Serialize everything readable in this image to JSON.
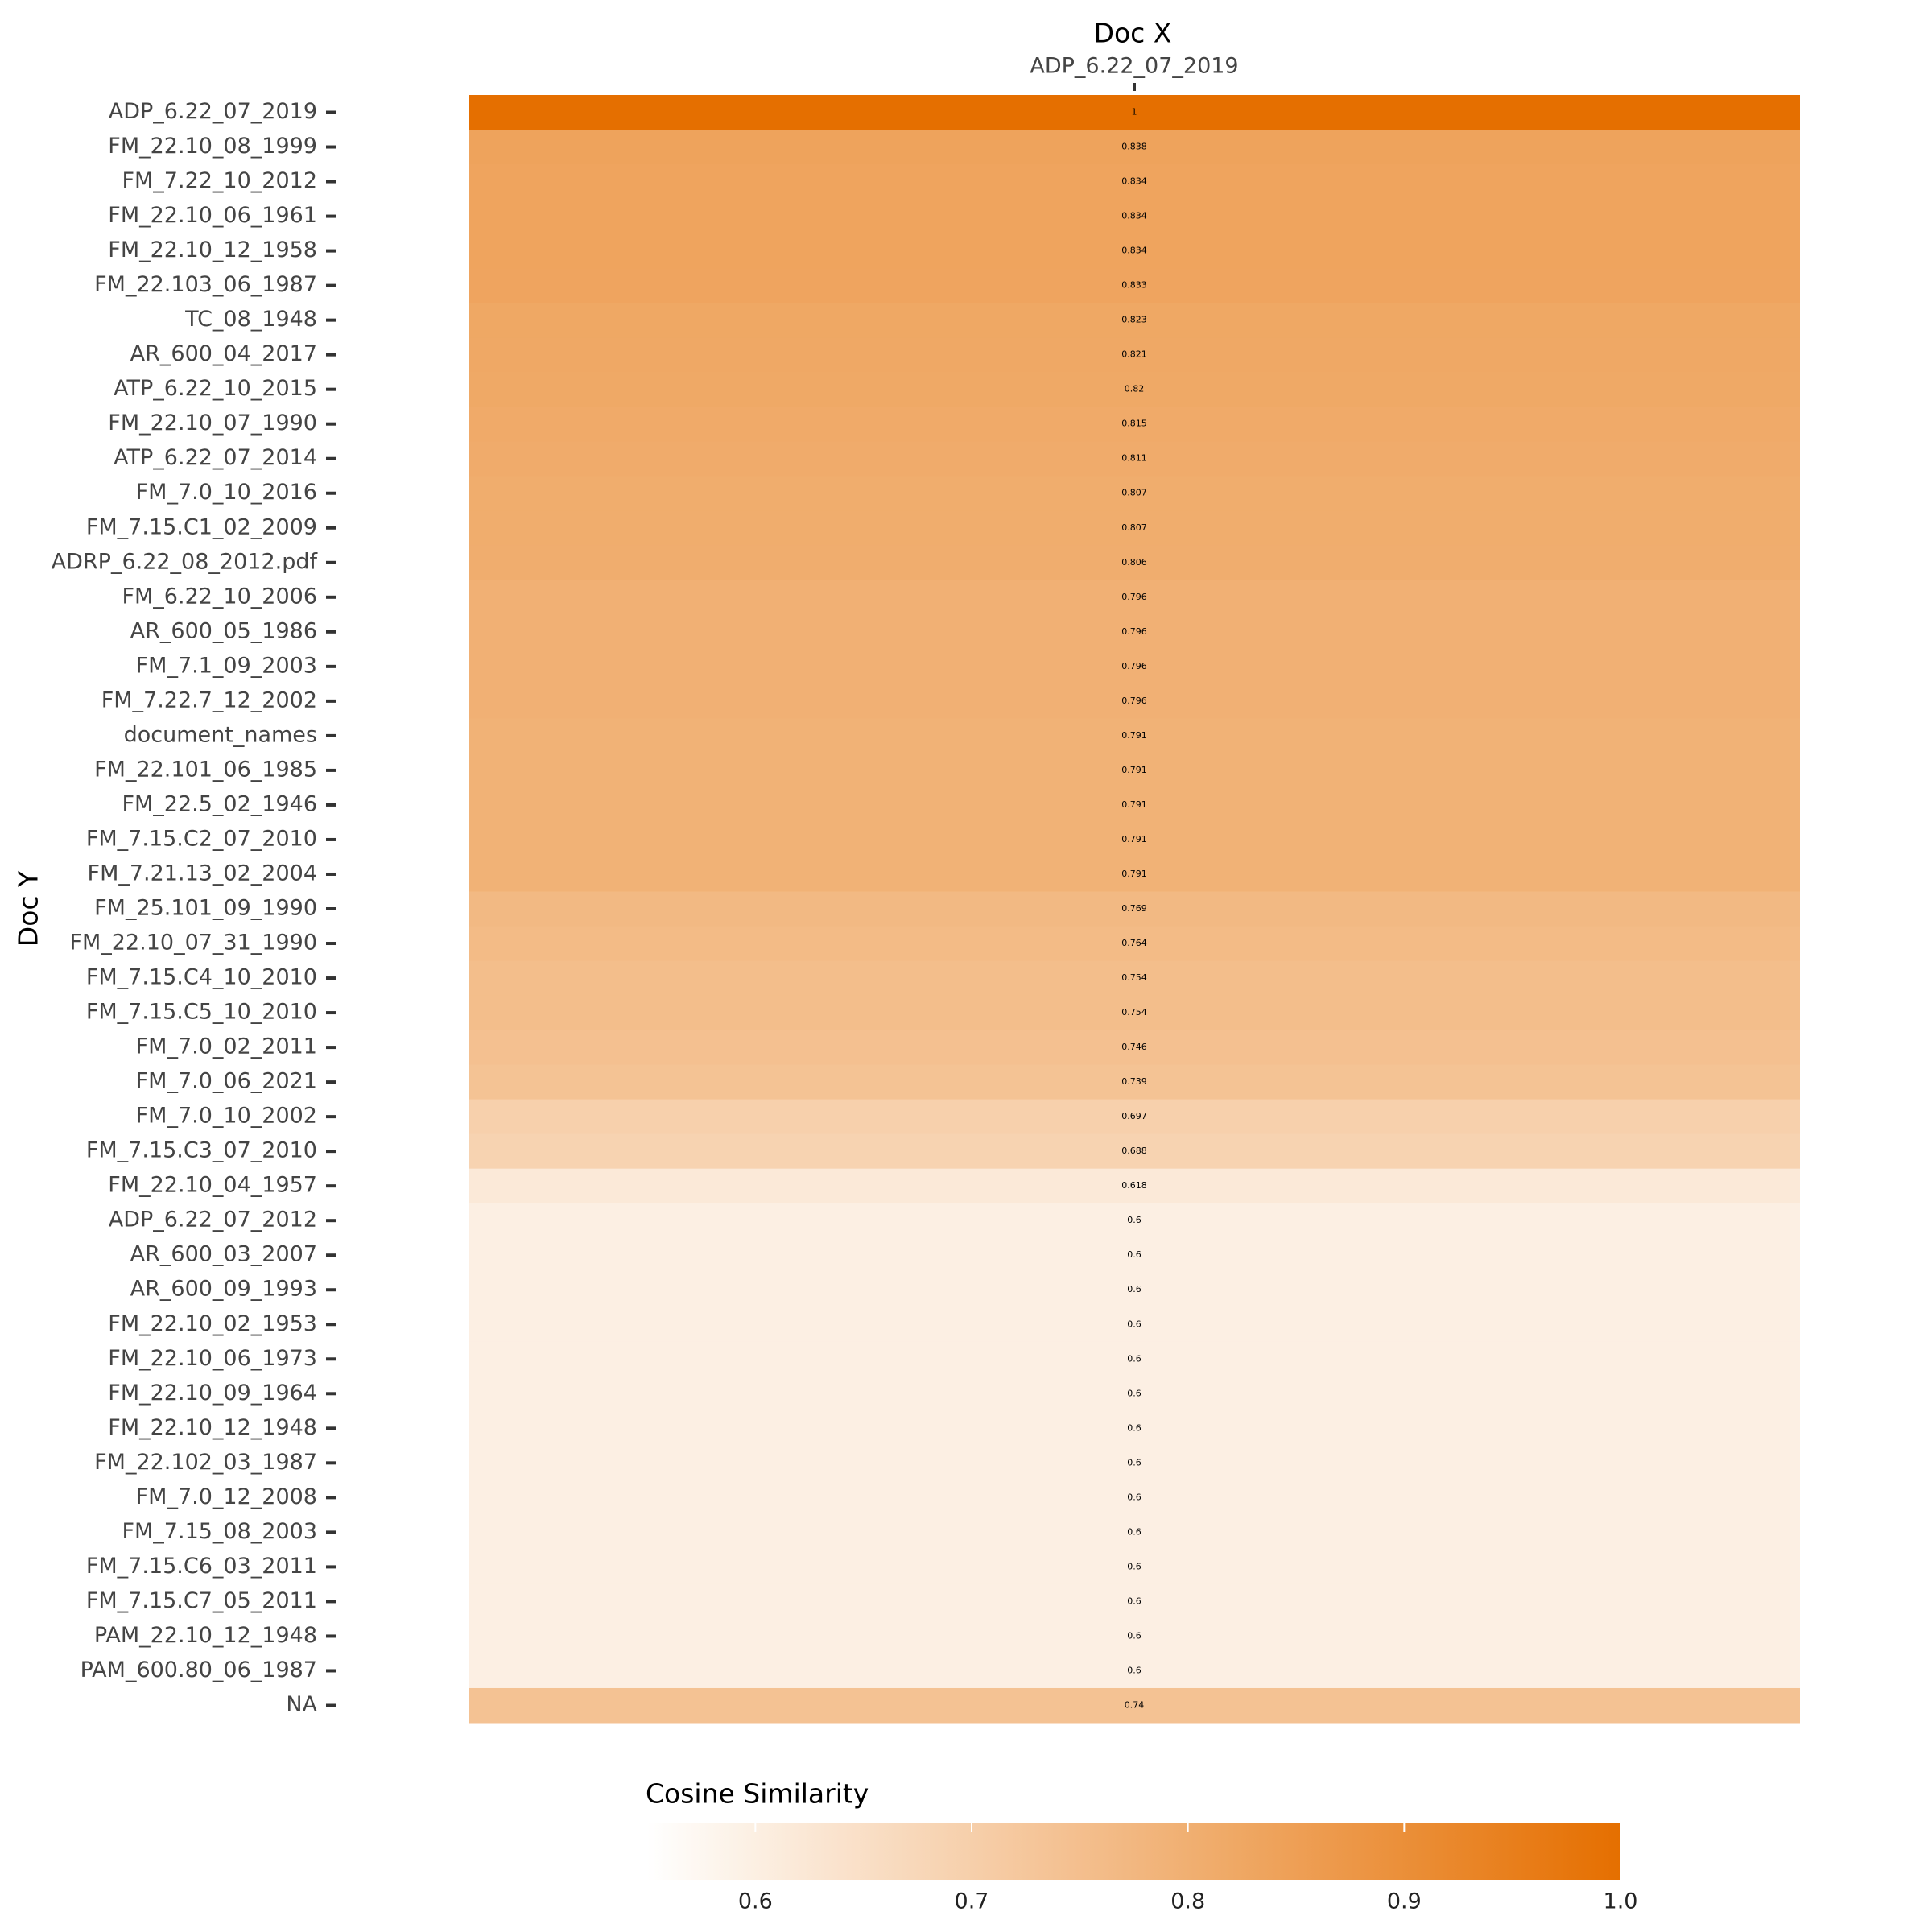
{
  "chart_data": {
    "type": "heatmap",
    "title": "Doc X",
    "x_categories": [
      "ADP_6.22_07_2019"
    ],
    "ylabel": "Doc Y",
    "y_categories": [
      "ADP_6.22_07_2019",
      "FM_22.10_08_1999",
      "FM_7.22_10_2012",
      "FM_22.10_06_1961",
      "FM_22.10_12_1958",
      "FM_22.103_06_1987",
      "TC_08_1948",
      "AR_600_04_2017",
      "ATP_6.22_10_2015",
      "FM_22.10_07_1990",
      "ATP_6.22_07_2014",
      "FM_7.0_10_2016",
      "FM_7.15.C1_02_2009",
      "ADRP_6.22_08_2012.pdf",
      "FM_6.22_10_2006",
      "AR_600_05_1986",
      "FM_7.1_09_2003",
      "FM_7.22.7_12_2002",
      "document_names",
      "FM_22.101_06_1985",
      "FM_22.5_02_1946",
      "FM_7.15.C2_07_2010",
      "FM_7.21.13_02_2004",
      "FM_25.101_09_1990",
      "FM_22.10_07_31_1990",
      "FM_7.15.C4_10_2010",
      "FM_7.15.C5_10_2010",
      "FM_7.0_02_2011",
      "FM_7.0_06_2021",
      "FM_7.0_10_2002",
      "FM_7.15.C3_07_2010",
      "FM_22.10_04_1957",
      "ADP_6.22_07_2012",
      "AR_600_03_2007",
      "AR_600_09_1993",
      "FM_22.10_02_1953",
      "FM_22.10_06_1973",
      "FM_22.10_09_1964",
      "FM_22.10_12_1948",
      "FM_22.102_03_1987",
      "FM_7.0_12_2008",
      "FM_7.15_08_2003",
      "FM_7.15.C6_03_2011",
      "FM_7.15.C7_05_2011",
      "PAM_22.10_12_1948",
      "PAM_600.80_06_1987",
      "NA"
    ],
    "values": [
      1,
      0.838,
      0.834,
      0.834,
      0.834,
      0.833,
      0.823,
      0.821,
      0.82,
      0.815,
      0.811,
      0.807,
      0.807,
      0.806,
      0.796,
      0.796,
      0.796,
      0.796,
      0.791,
      0.791,
      0.791,
      0.791,
      0.791,
      0.769,
      0.764,
      0.754,
      0.754,
      0.746,
      0.739,
      0.697,
      0.688,
      0.618,
      0.6,
      0.6,
      0.6,
      0.6,
      0.6,
      0.6,
      0.6,
      0.6,
      0.6,
      0.6,
      0.6,
      0.6,
      0.6,
      0.6,
      0.74
    ],
    "colorbar_label": "Cosine Similarity",
    "clim": [
      0.55,
      1.0
    ],
    "cticks": [
      0.6,
      0.7,
      0.8,
      0.9,
      {
        "value": 1,
        "label": "1.0"
      }
    ],
    "color_low": "#ffffff",
    "color_high": "#e56f00"
  }
}
